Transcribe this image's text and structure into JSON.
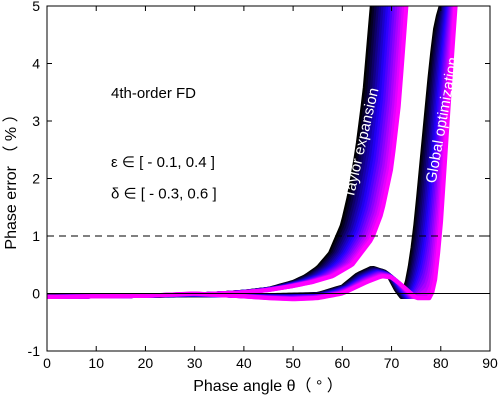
{
  "chart_data": {
    "type": "line",
    "title": "",
    "xlabel": "Phase angle θ（ ° ）",
    "ylabel": "Phase error （ % ）",
    "xlim": [
      0,
      90
    ],
    "ylim": [
      -1,
      5
    ],
    "x_ticks": [
      0,
      10,
      20,
      30,
      40,
      50,
      60,
      70,
      80,
      90
    ],
    "y_ticks": [
      -1,
      0,
      1,
      2,
      3,
      4,
      5
    ],
    "grid": false,
    "reference_lines": [
      {
        "y": 1,
        "style": "dashed",
        "color": "#000000"
      },
      {
        "y": 0,
        "style": "solid",
        "color": "#000000"
      }
    ],
    "annotations": [
      {
        "text": "4th-order FD",
        "x": 13,
        "y": 3.4
      },
      {
        "text": "ε ∈ [ - 0.1, 0.4 ]",
        "x": 13,
        "y": 2.2
      },
      {
        "text": "δ ∈ [ - 0.3, 0.6 ]",
        "x": 13,
        "y": 1.65
      }
    ],
    "colors": {
      "start": "#000000",
      "mid": "#2200ff",
      "end": "#ff00ff"
    },
    "series": [
      {
        "name": "Taylor expansion",
        "n_curves": 16,
        "x_inner": [
          0,
          10,
          20,
          25,
          30,
          35,
          40,
          45,
          50,
          52.5,
          55,
          57.5,
          60,
          61.5,
          63,
          64.5,
          66
        ],
        "y_inner": [
          -0.06,
          -0.05,
          -0.04,
          -0.03,
          -0.02,
          0.0,
          0.03,
          0.08,
          0.2,
          0.3,
          0.45,
          0.7,
          1.2,
          1.75,
          2.5,
          3.5,
          5.0
        ],
        "x_outer": [
          0,
          10,
          20,
          25,
          30,
          35,
          40,
          45,
          50,
          54,
          58,
          62,
          66,
          68,
          70,
          71.5,
          73
        ],
        "y_outer": [
          -0.06,
          -0.05,
          -0.04,
          -0.03,
          -0.02,
          0.0,
          0.02,
          0.06,
          0.13,
          0.2,
          0.3,
          0.5,
          0.95,
          1.4,
          2.2,
          3.3,
          5.0
        ]
      },
      {
        "name": "Global optimization",
        "n_curves": 16,
        "x_inner": [
          0,
          10,
          20,
          30,
          40,
          45,
          50,
          55,
          60,
          63,
          66,
          69,
          71,
          72,
          73,
          74,
          75,
          76,
          77,
          78,
          79,
          80
        ],
        "y_inner": [
          -0.05,
          -0.04,
          -0.04,
          -0.03,
          -0.03,
          -0.03,
          -0.02,
          -0.01,
          0.12,
          0.33,
          0.45,
          0.37,
          0.05,
          -0.06,
          0.15,
          0.6,
          1.3,
          2.2,
          3.1,
          4.0,
          4.7,
          5.0
        ],
        "x_outer": [
          0,
          10,
          20,
          30,
          40,
          45,
          50,
          55,
          60,
          65,
          68,
          70,
          72,
          74,
          75,
          76,
          77,
          78,
          79,
          80,
          81,
          82,
          83
        ],
        "y_outer": [
          -0.06,
          -0.05,
          -0.04,
          0.0,
          -0.05,
          -0.08,
          -0.1,
          -0.08,
          0.0,
          0.2,
          0.3,
          0.28,
          0.15,
          0.0,
          -0.08,
          -0.08,
          -0.08,
          -0.08,
          0.3,
          1.2,
          2.5,
          3.8,
          5.0
        ]
      }
    ]
  }
}
